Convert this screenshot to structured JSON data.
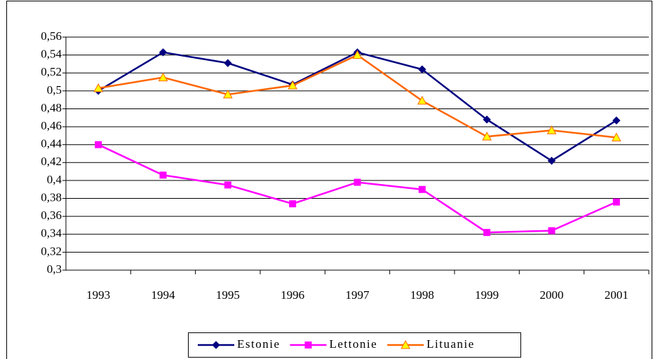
{
  "chart_data": {
    "type": "line",
    "categories": [
      "1993",
      "1994",
      "1995",
      "1996",
      "1997",
      "1998",
      "1999",
      "2000",
      "2001"
    ],
    "series": [
      {
        "name": "Estonie",
        "color": "#000080",
        "marker": "diamond",
        "marker_fill": "#000080",
        "values": [
          0.5,
          0.543,
          0.531,
          0.507,
          0.543,
          0.524,
          0.468,
          0.422,
          0.467
        ]
      },
      {
        "name": "Lettonie",
        "color": "#ff00ff",
        "marker": "square",
        "marker_fill": "#ff00ff",
        "values": [
          0.44,
          0.406,
          0.395,
          0.374,
          0.398,
          0.39,
          0.342,
          0.344,
          0.376
        ]
      },
      {
        "name": "Lituanie",
        "color": "#ff6600",
        "marker": "triangle",
        "marker_fill": "#ffff00",
        "values": [
          0.503,
          0.515,
          0.496,
          0.506,
          0.54,
          0.489,
          0.449,
          0.456,
          0.448
        ]
      }
    ],
    "ylim": [
      0.3,
      0.56
    ],
    "yticks": [
      {
        "value": 0.3,
        "label": "0,3"
      },
      {
        "value": 0.32,
        "label": "0,32"
      },
      {
        "value": 0.34,
        "label": "0,34"
      },
      {
        "value": 0.36,
        "label": "0,36"
      },
      {
        "value": 0.38,
        "label": "0,38"
      },
      {
        "value": 0.4,
        "label": "0,4"
      },
      {
        "value": 0.42,
        "label": "0,42"
      },
      {
        "value": 0.44,
        "label": "0,44"
      },
      {
        "value": 0.46,
        "label": "0,46"
      },
      {
        "value": 0.48,
        "label": "0,48"
      },
      {
        "value": 0.5,
        "label": "0,5"
      },
      {
        "value": 0.52,
        "label": "0,52"
      },
      {
        "value": 0.54,
        "label": "0,54"
      },
      {
        "value": 0.56,
        "label": "0,56"
      }
    ],
    "grid": true,
    "legend": "bottom"
  }
}
